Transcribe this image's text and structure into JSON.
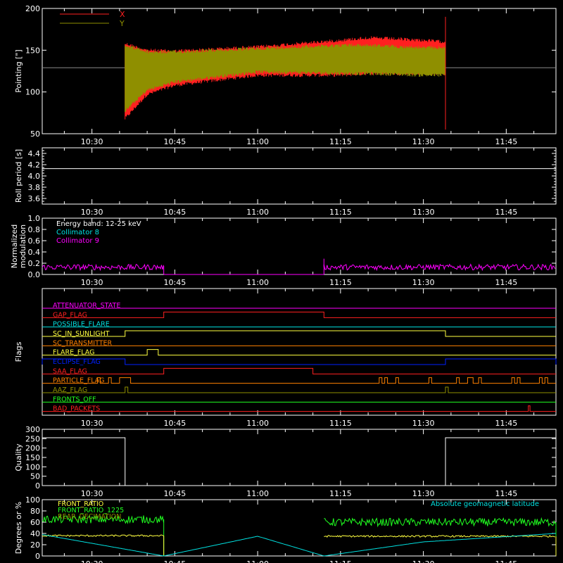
{
  "time_ticks": [
    "10:30",
    "10:45",
    "11:00",
    "11:15",
    "11:30",
    "11:45"
  ],
  "colors": {
    "background": "#000000",
    "axes": "#ffffff",
    "red": "#ff2020",
    "olive": "#8f8f00",
    "cyan": "#00e0e0",
    "magenta": "#ff00ff",
    "yellow": "#ffff40",
    "green": "#20ff20",
    "orange": "#ff8000",
    "blue": "#0020ff"
  },
  "chart_data": [
    {
      "id": "pointing",
      "type": "line",
      "ylabel": "Pointing [\"]",
      "ylim": [
        50,
        200
      ],
      "yticks": [
        "200",
        "150",
        "100",
        "50"
      ],
      "x_time_range": [
        "10:21",
        "11:54"
      ],
      "legend": [
        {
          "name": "X",
          "color": "#ff2020"
        },
        {
          "name": "Y",
          "color": "#8f8f00"
        }
      ],
      "legend_placement": "top-left",
      "series": [
        {
          "name": "X",
          "time": [
            "10:36",
            "10:40",
            "10:45",
            "11:00",
            "11:15",
            "11:20",
            "11:30",
            "11:34"
          ],
          "upper": [
            160,
            152,
            151,
            156,
            164,
            167,
            164,
            162
          ],
          "lower": [
            66,
            95,
            106,
            118,
            118,
            120,
            120,
            120
          ]
        },
        {
          "name": "Y",
          "time": [
            "10:36",
            "10:40",
            "10:45",
            "11:00",
            "11:15",
            "11:20",
            "11:30",
            "11:34"
          ],
          "upper": [
            158,
            150,
            150,
            154,
            158,
            158,
            155,
            155
          ],
          "lower": [
            75,
            100,
            110,
            122,
            120,
            120,
            118,
            118
          ]
        }
      ],
      "reference_level": 129
    },
    {
      "id": "roll_period",
      "type": "line",
      "ylabel": "Roll period [s]",
      "ylim": [
        3.5,
        4.5
      ],
      "yticks": [
        "4.4",
        "4.2",
        "4.0",
        "3.8",
        "3.6"
      ],
      "series": [
        {
          "name": "",
          "value": 4.13
        }
      ]
    },
    {
      "id": "modulation",
      "type": "line",
      "ylabel": "Normalized\nmodulation",
      "ylim": [
        0,
        1.0
      ],
      "yticks": [
        "1.0",
        "0.8",
        "0.6",
        "0.4",
        "0.2",
        "0.0"
      ],
      "legend": [
        {
          "name": "Energy band: 12-25 keV",
          "color": "#ffffff"
        },
        {
          "name": "Collimator 8",
          "color": "#00e0e0"
        },
        {
          "name": "Collimator 9",
          "color": "#ff00ff"
        }
      ],
      "legend_placement": "top-left",
      "series": [
        {
          "name": "Collimator 9",
          "segments": [
            {
              "start": "10:21",
              "end": "10:43",
              "level": 0.13
            },
            {
              "start": "11:12",
              "end": "11:54",
              "level": 0.13
            }
          ]
        }
      ]
    },
    {
      "id": "flags",
      "type": "line",
      "ylabel": "Flags",
      "flags": [
        {
          "name": "ATTENUATOR_STATE",
          "color": "#ff00ff",
          "on": []
        },
        {
          "name": "GAP_FLAG",
          "color": "#ff2020",
          "on": [
            [
              "10:43",
              "11:12"
            ]
          ]
        },
        {
          "name": "POSSIBLE_FLARE",
          "color": "#00e0e0",
          "on": []
        },
        {
          "name": "SC_IN_SUNLIGHT",
          "color": "#ffff40",
          "on": [
            [
              "10:36",
              "11:34"
            ]
          ]
        },
        {
          "name": "SC_TRANSMITTER",
          "color": "#ff8000",
          "on": []
        },
        {
          "name": "FLARE_FLAG",
          "color": "#ffff40",
          "on": [
            [
              "10:40",
              "10:42"
            ]
          ]
        },
        {
          "name": "ECLIPSE_FLAG",
          "color": "#0020ff",
          "on": [
            [
              "10:21",
              "10:36"
            ],
            [
              "11:34",
              "11:54"
            ]
          ]
        },
        {
          "name": "SAA_FLAG",
          "color": "#ff2020",
          "on": [
            [
              "10:43",
              "11:10"
            ]
          ]
        },
        {
          "name": "PARTICLE_FLAG",
          "color": "#ff8000",
          "on": [
            [
              "10:31",
              "10:31.5"
            ],
            [
              "10:33",
              "10:33.5"
            ],
            [
              "10:35",
              "10:37"
            ],
            [
              "11:22",
              "11:22.5"
            ],
            [
              "11:23",
              "11:23.5"
            ],
            [
              "11:25",
              "11:25.5"
            ],
            [
              "11:31",
              "11:31.5"
            ],
            [
              "11:36",
              "11:36.5"
            ],
            [
              "11:38",
              "11:39"
            ],
            [
              "11:40",
              "11:40.5"
            ],
            [
              "11:46",
              "11:46.5"
            ],
            [
              "11:47",
              "11:47.5"
            ],
            [
              "11:51",
              "11:51.5"
            ],
            [
              "11:52",
              "11:52.5"
            ]
          ]
        },
        {
          "name": "AAZ_FLAG",
          "color": "#8f8f00",
          "on": [
            [
              "10:36",
              "10:36.5"
            ],
            [
              "11:34",
              "11:34.5"
            ]
          ]
        },
        {
          "name": "FRONTS_OFF",
          "color": "#20ff20",
          "on": []
        },
        {
          "name": "BAD_PACKETS",
          "color": "#ff2020",
          "on": [
            [
              "11:49",
              "11:49.3"
            ]
          ]
        }
      ]
    },
    {
      "id": "quality",
      "type": "line",
      "ylabel": "Quality",
      "ylim": [
        0,
        300
      ],
      "yticks": [
        "300",
        "250",
        "200",
        "150",
        "100",
        "50",
        "0"
      ],
      "series": [
        {
          "name": "",
          "steps": [
            {
              "start": "10:21",
              "end": "10:36",
              "value": 255
            },
            {
              "start": "10:36",
              "end": "11:34",
              "value": 0
            },
            {
              "start": "11:34",
              "end": "11:54",
              "value": 255
            }
          ]
        }
      ]
    },
    {
      "id": "ratios",
      "type": "line",
      "ylabel": "Degrees or %",
      "ylim": [
        0,
        100
      ],
      "yticks": [
        "100",
        "80",
        "60",
        "40",
        "20",
        "0"
      ],
      "legend": [
        {
          "name": "FRONT_RATIO",
          "color": "#ffff40"
        },
        {
          "name": "FRONT_RATIO_1225",
          "color": "#20ff20"
        },
        {
          "name": "REAR_DECIMATION",
          "color": "#8f8f00"
        }
      ],
      "annotation": {
        "text": "Absolute geomagnetic latitude",
        "color": "#00e0e0"
      },
      "series": [
        {
          "name": "FRONT_RATIO_1225",
          "segments": [
            {
              "start": "10:21",
              "end": "10:43",
              "level": 65
            },
            {
              "start": "11:12",
              "end": "11:54",
              "level": 60
            }
          ]
        },
        {
          "name": "FRONT_RATIO",
          "segments": [
            {
              "start": "10:21",
              "end": "10:43",
              "level": 36
            },
            {
              "start": "11:12",
              "end": "11:54",
              "level": 35
            }
          ]
        },
        {
          "name": "Absolute geomagnetic latitude",
          "time": [
            "10:21",
            "10:43",
            "11:00",
            "11:12",
            "11:30",
            "11:54"
          ],
          "values": [
            38,
            0,
            35,
            0,
            25,
            40
          ]
        }
      ]
    }
  ]
}
